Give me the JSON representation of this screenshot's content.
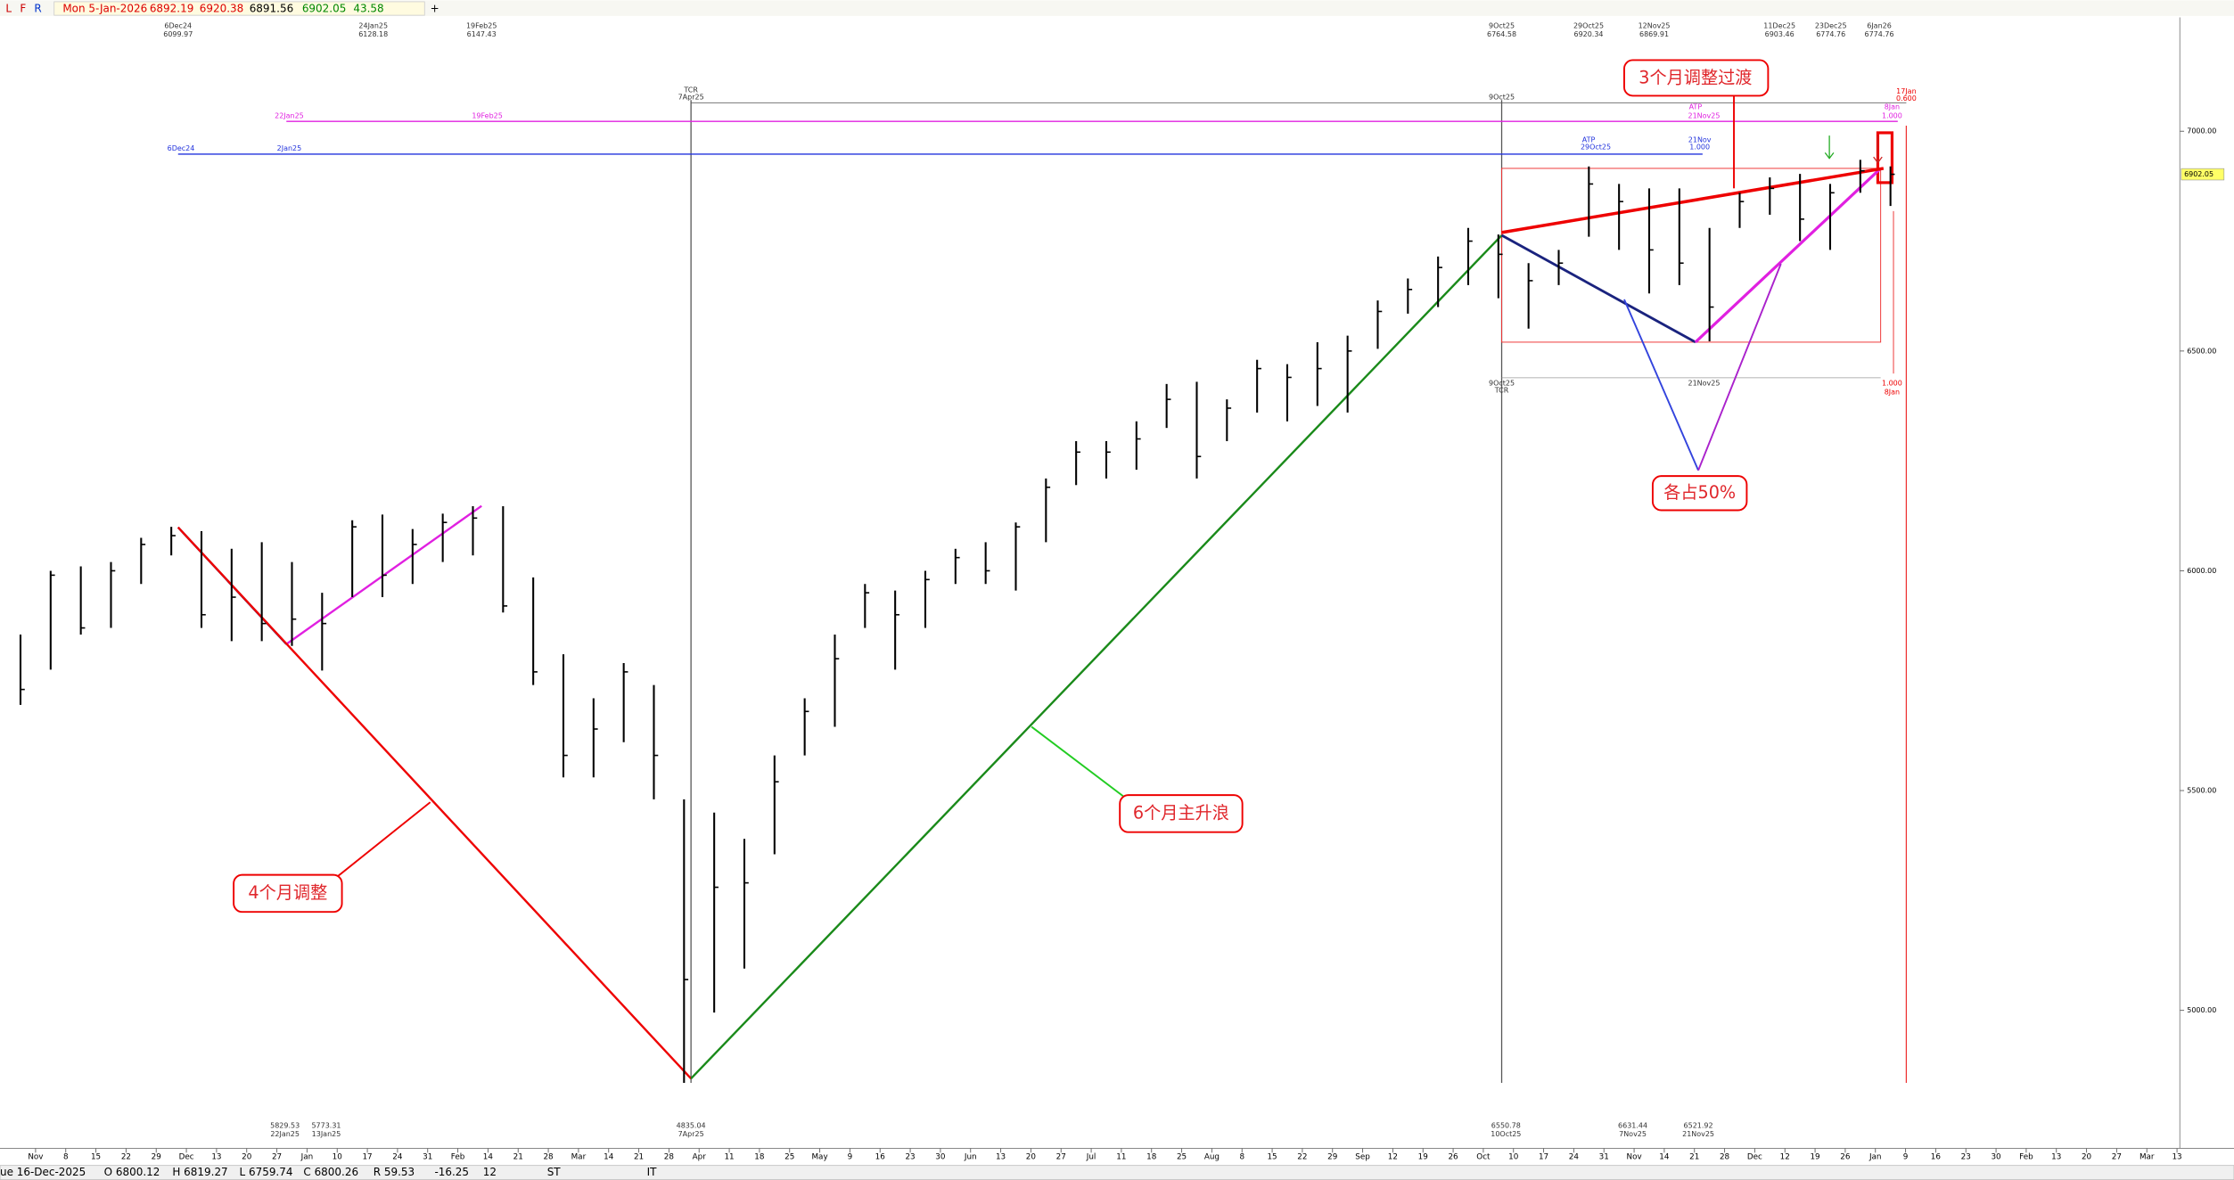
{
  "header": {
    "icons": [
      "L",
      "F",
      "R"
    ],
    "date": "Mon 5-Jan-2026",
    "open": "6892.19",
    "high": "6920.38",
    "low": "6891.56",
    "close": "6902.05",
    "change": "43.58"
  },
  "footer": {
    "date": "ue 16-Dec-2025",
    "open": "O 6800.12",
    "high": "H 6819.27",
    "low": "L 6759.74",
    "close": "C 6800.26",
    "range": "R 59.53",
    "change": "-16.25",
    "count": "12",
    "st": "ST",
    "it": "IT"
  },
  "chart_data": {
    "type": "ohlc",
    "color": "#000000",
    "x": [
      0.5,
      1.5,
      2.5,
      3.5,
      4.5,
      5.5,
      6.5,
      7.5,
      8.5,
      9.5,
      10.5,
      11.5,
      12.5,
      13.5,
      14.5,
      15.5,
      16.5,
      17.5,
      18.5,
      19.5,
      20.5,
      21.5,
      22.5,
      23.5,
      24.5,
      25.5,
      26.5,
      27.5,
      28.5,
      29.5,
      30.5,
      31.5,
      32.5,
      33.5,
      34.5,
      35.5,
      36.5,
      37.5,
      38.5,
      39.5,
      40.5,
      41.5,
      42.5,
      43.5,
      44.5,
      45.5,
      46.5,
      47.5,
      48.5,
      49.5,
      50.5,
      51.5,
      52.5,
      53.5,
      54.5,
      55.5,
      56.5,
      57.5,
      58.5,
      59.5,
      60.5,
      61.5,
      62.5
    ],
    "high": [
      5855,
      6000,
      6010,
      6020,
      6075,
      6100,
      6090,
      6050,
      6065,
      6020,
      5950,
      6115,
      6128,
      6095,
      6130,
      6147,
      6147,
      5985,
      5810,
      5710,
      5790,
      5740,
      5480,
      5450,
      5390,
      5580,
      5710,
      5855,
      5970,
      5955,
      6000,
      6050,
      6065,
      6110,
      6210,
      6295,
      6295,
      6340,
      6425,
      6430,
      6390,
      6480,
      6470,
      6520,
      6535,
      6615,
      6665,
      6715,
      6780,
      6765,
      6700,
      6730,
      6920,
      6880,
      6870,
      6870,
      6780,
      6860,
      6895,
      6903,
      6880,
      6935,
      6920
    ],
    "low": [
      5695,
      5775,
      5855,
      5870,
      5970,
      6035,
      5870,
      5840,
      5840,
      5829,
      5773,
      5940,
      5940,
      5970,
      6020,
      6035,
      5905,
      5740,
      5530,
      5530,
      5610,
      5480,
      4835,
      4995,
      5095,
      5355,
      5580,
      5645,
      5870,
      5775,
      5870,
      5970,
      5970,
      5955,
      6065,
      6195,
      6210,
      6230,
      6325,
      6210,
      6295,
      6360,
      6340,
      6375,
      6360,
      6505,
      6585,
      6600,
      6650,
      6620,
      6551,
      6650,
      6760,
      6730,
      6631,
      6650,
      6522,
      6780,
      6810,
      6750,
      6730,
      6860,
      6830
    ],
    "close": [
      5730,
      5990,
      5870,
      6000,
      6060,
      6080,
      5900,
      5940,
      5880,
      5890,
      5880,
      6100,
      5990,
      6060,
      6110,
      6120,
      5920,
      5770,
      5580,
      5640,
      5770,
      5580,
      5070,
      5280,
      5290,
      5520,
      5680,
      5800,
      5950,
      5900,
      5980,
      6030,
      6000,
      6100,
      6190,
      6270,
      6270,
      6300,
      6390,
      6260,
      6370,
      6460,
      6440,
      6460,
      6500,
      6590,
      6640,
      6690,
      6750,
      6720,
      6660,
      6700,
      6880,
      6840,
      6730,
      6700,
      6600,
      6840,
      6870,
      6800,
      6860,
      6910,
      6902.05
    ],
    "xlim": [
      0,
      72
    ],
    "xticks": [
      {
        "value": 1,
        "label": "Nov"
      },
      {
        "value": 2,
        "label": "8"
      },
      {
        "value": 3,
        "label": "15"
      },
      {
        "value": 4,
        "label": "22"
      },
      {
        "value": 5,
        "label": "29"
      },
      {
        "value": 6,
        "label": "Dec"
      },
      {
        "value": 7,
        "label": "13"
      },
      {
        "value": 8,
        "label": "20"
      },
      {
        "value": 9,
        "label": "27"
      },
      {
        "value": 10,
        "label": "Jan"
      },
      {
        "value": 11,
        "label": "10"
      },
      {
        "value": 12,
        "label": "17"
      },
      {
        "value": 13,
        "label": "24"
      },
      {
        "value": 14,
        "label": "31"
      },
      {
        "value": 15,
        "label": "Feb"
      },
      {
        "value": 16,
        "label": "14"
      },
      {
        "value": 17,
        "label": "21"
      },
      {
        "value": 18,
        "label": "28"
      },
      {
        "value": 19,
        "label": "Mar"
      },
      {
        "value": 20,
        "label": "14"
      },
      {
        "value": 21,
        "label": "21"
      },
      {
        "value": 22,
        "label": "28"
      },
      {
        "value": 23,
        "label": "Apr"
      },
      {
        "value": 24,
        "label": "11"
      },
      {
        "value": 25,
        "label": "18"
      },
      {
        "value": 26,
        "label": "25"
      },
      {
        "value": 27,
        "label": "May"
      },
      {
        "value": 28,
        "label": "9"
      },
      {
        "value": 29,
        "label": "16"
      },
      {
        "value": 30,
        "label": "23"
      },
      {
        "value": 31,
        "label": "30"
      },
      {
        "value": 32,
        "label": "Jun"
      },
      {
        "value": 33,
        "label": "13"
      },
      {
        "value": 34,
        "label": "20"
      },
      {
        "value": 35,
        "label": "27"
      },
      {
        "value": 36,
        "label": "Jul"
      },
      {
        "value": 37,
        "label": "11"
      },
      {
        "value": 38,
        "label": "18"
      },
      {
        "value": 39,
        "label": "25"
      },
      {
        "value": 40,
        "label": "Aug"
      },
      {
        "value": 41,
        "label": "8"
      },
      {
        "value": 42,
        "label": "15"
      },
      {
        "value": 43,
        "label": "22"
      },
      {
        "value": 44,
        "label": "29"
      },
      {
        "value": 45,
        "label": "Sep"
      },
      {
        "value": 46,
        "label": "12"
      },
      {
        "value": 47,
        "label": "19"
      },
      {
        "value": 48,
        "label": "26"
      },
      {
        "value": 49,
        "label": "Oct"
      },
      {
        "value": 50,
        "label": "10"
      },
      {
        "value": 51,
        "label": "17"
      },
      {
        "value": 52,
        "label": "24"
      },
      {
        "value": 53,
        "label": "31"
      },
      {
        "value": 54,
        "label": "Nov"
      },
      {
        "value": 55,
        "label": "14"
      },
      {
        "value": 56,
        "label": "21"
      },
      {
        "value": 57,
        "label": "28"
      },
      {
        "value": 58,
        "label": "Dec"
      },
      {
        "value": 59,
        "label": "12"
      },
      {
        "value": 60,
        "label": "19"
      },
      {
        "value": 61,
        "label": "26"
      },
      {
        "value": 62,
        "label": "Jan"
      },
      {
        "value": 63,
        "label": "9"
      },
      {
        "value": 64,
        "label": "16"
      },
      {
        "value": 65,
        "label": "23"
      },
      {
        "value": 66,
        "label": "30"
      },
      {
        "value": 67,
        "label": "Feb"
      },
      {
        "value": 68,
        "label": "13"
      },
      {
        "value": 69,
        "label": "20"
      },
      {
        "value": 70,
        "label": "27"
      },
      {
        "value": 71,
        "label": "Mar"
      },
      {
        "value": 72,
        "label": "13"
      }
    ],
    "ylim": [
      4686,
      7259
    ],
    "yticks": [
      {
        "value": 5000,
        "label": "5000.00"
      },
      {
        "value": 5500,
        "label": "5500.00"
      },
      {
        "value": 6000,
        "label": "6000.00"
      },
      {
        "value": 6500,
        "label": "6500.00"
      },
      {
        "value": 7000,
        "label": "7000.00"
      }
    ],
    "last_price": {
      "value": 6902.05,
      "label": "6902.05"
    },
    "top_labels": [
      [
        "6Dec24",
        "6099.97"
      ],
      [
        "24Jan25",
        "6128.18"
      ],
      [
        "19Feb25",
        "6147.43"
      ],
      [
        "9Oct25",
        "6764.58"
      ],
      [
        "29Oct25",
        "6920.34"
      ],
      [
        "12Nov25",
        "6869.91"
      ],
      [
        "11Dec25",
        "6903.46"
      ],
      [
        "23Dec25",
        "6774.76"
      ],
      [
        "6Jan26",
        "6774.76"
      ]
    ],
    "bottom_labels": [
      [
        "5829.53",
        "22Jan25"
      ],
      [
        "5773.31",
        "13Jan25"
      ],
      [
        "4835.04",
        "7Apr25"
      ],
      [
        "6550.78",
        "10Oct25"
      ],
      [
        "6631.44",
        "7Nov25"
      ],
      [
        "6521.92",
        "21Nov25"
      ]
    ],
    "line_labels": [
      "TCR",
      "7Apr25",
      "9Oct25",
      "6Dec24",
      "2Jan25",
      "ATP",
      "29Oct25",
      "21Nov",
      "1.000",
      "22Jan25",
      "19Feb25",
      "ATP",
      "21Nov25",
      "17Jan",
      "0.600",
      "8Jan",
      "1.000",
      "9Oct25",
      "TCR",
      "21Nov25",
      "1.000",
      "8Jan"
    ],
    "callouts": [
      "3个月调整过渡",
      "各占50%",
      "6个月主升浪",
      "4个月调整"
    ]
  }
}
